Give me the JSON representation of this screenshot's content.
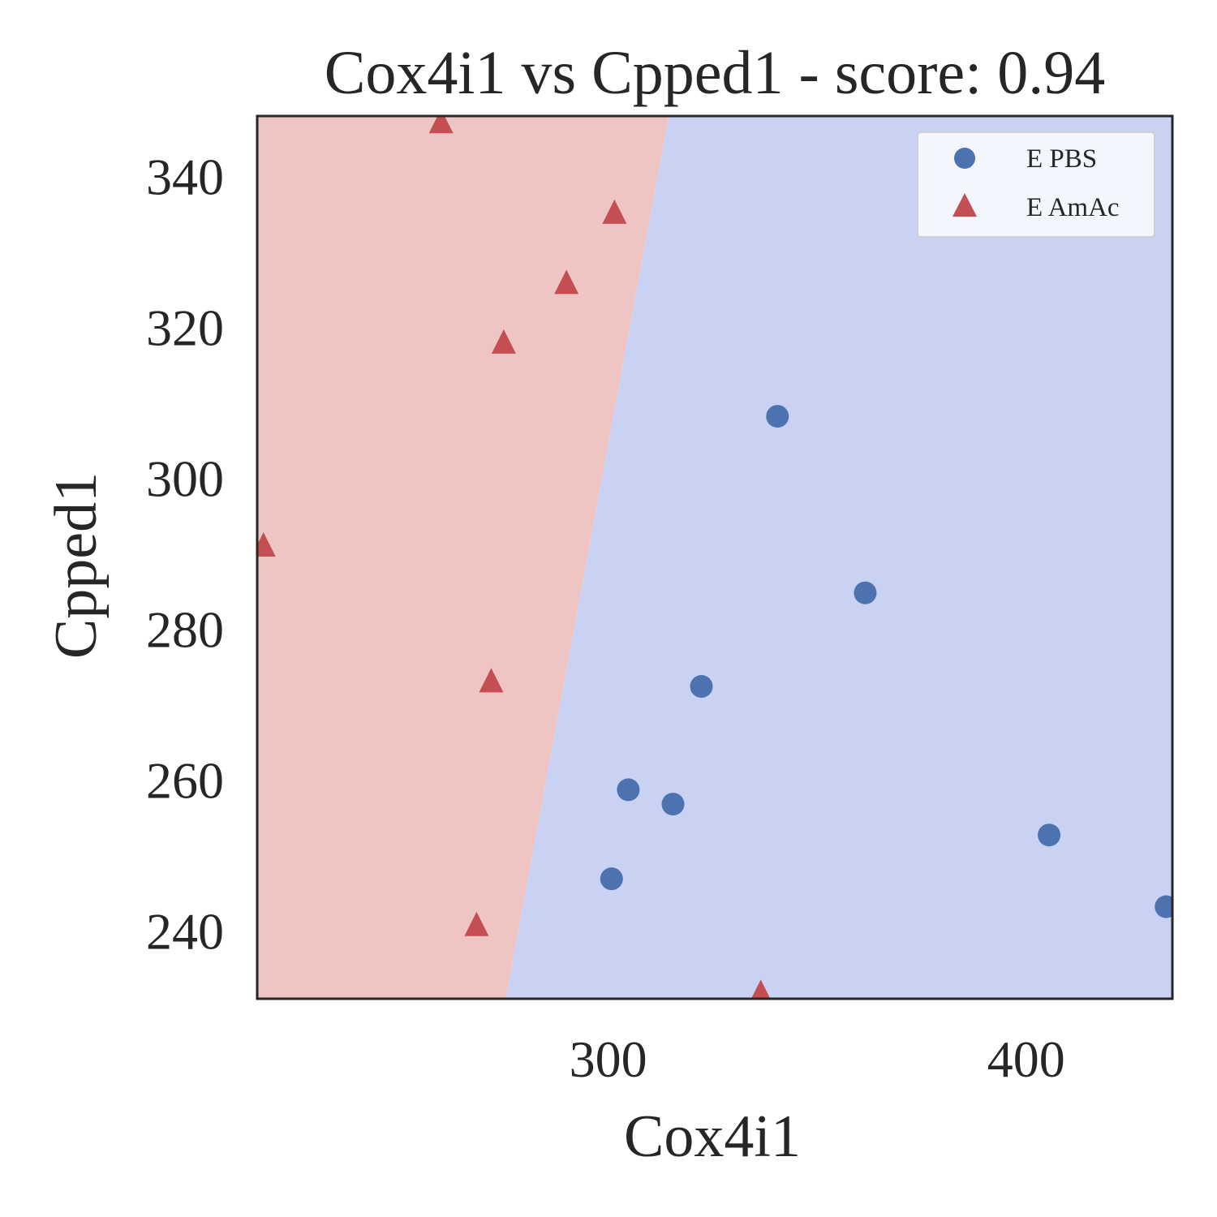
{
  "chart_data": {
    "type": "scatter",
    "title": "Cox4i1 vs Cpped1 - score: 0.94",
    "xlabel": "Cox4i1",
    "ylabel": "Cpped1",
    "xlim": [
      216,
      435
    ],
    "ylim": [
      231,
      348
    ],
    "xticks": [
      300,
      400
    ],
    "yticks": [
      240,
      260,
      280,
      300,
      320,
      340
    ],
    "grid": false,
    "legend_position": "top-right",
    "decision_boundary": {
      "points": [
        [
          275.5,
          231
        ],
        [
          314.5,
          348
        ]
      ],
      "left_region_color": "#efc5c4",
      "right_region_color": "#c9d2f2"
    },
    "series": [
      {
        "name": "E PBS",
        "marker": "circle",
        "color": "#4c72b0",
        "points": [
          [
            340.5,
            308.2
          ],
          [
            361.5,
            284.8
          ],
          [
            322.3,
            272.4
          ],
          [
            304.8,
            258.7
          ],
          [
            315.5,
            256.8
          ],
          [
            405.5,
            252.7
          ],
          [
            300.8,
            246.9
          ],
          [
            433.5,
            243.2
          ]
        ]
      },
      {
        "name": "E AmAc",
        "marker": "triangle",
        "color": "#c44e52",
        "points": [
          [
            260.0,
            347.0
          ],
          [
            301.5,
            335.0
          ],
          [
            290.0,
            325.7
          ],
          [
            275.0,
            317.8
          ],
          [
            217.5,
            290.9
          ],
          [
            272.0,
            272.9
          ],
          [
            268.5,
            240.6
          ],
          [
            336.5,
            231.6
          ]
        ]
      }
    ]
  }
}
